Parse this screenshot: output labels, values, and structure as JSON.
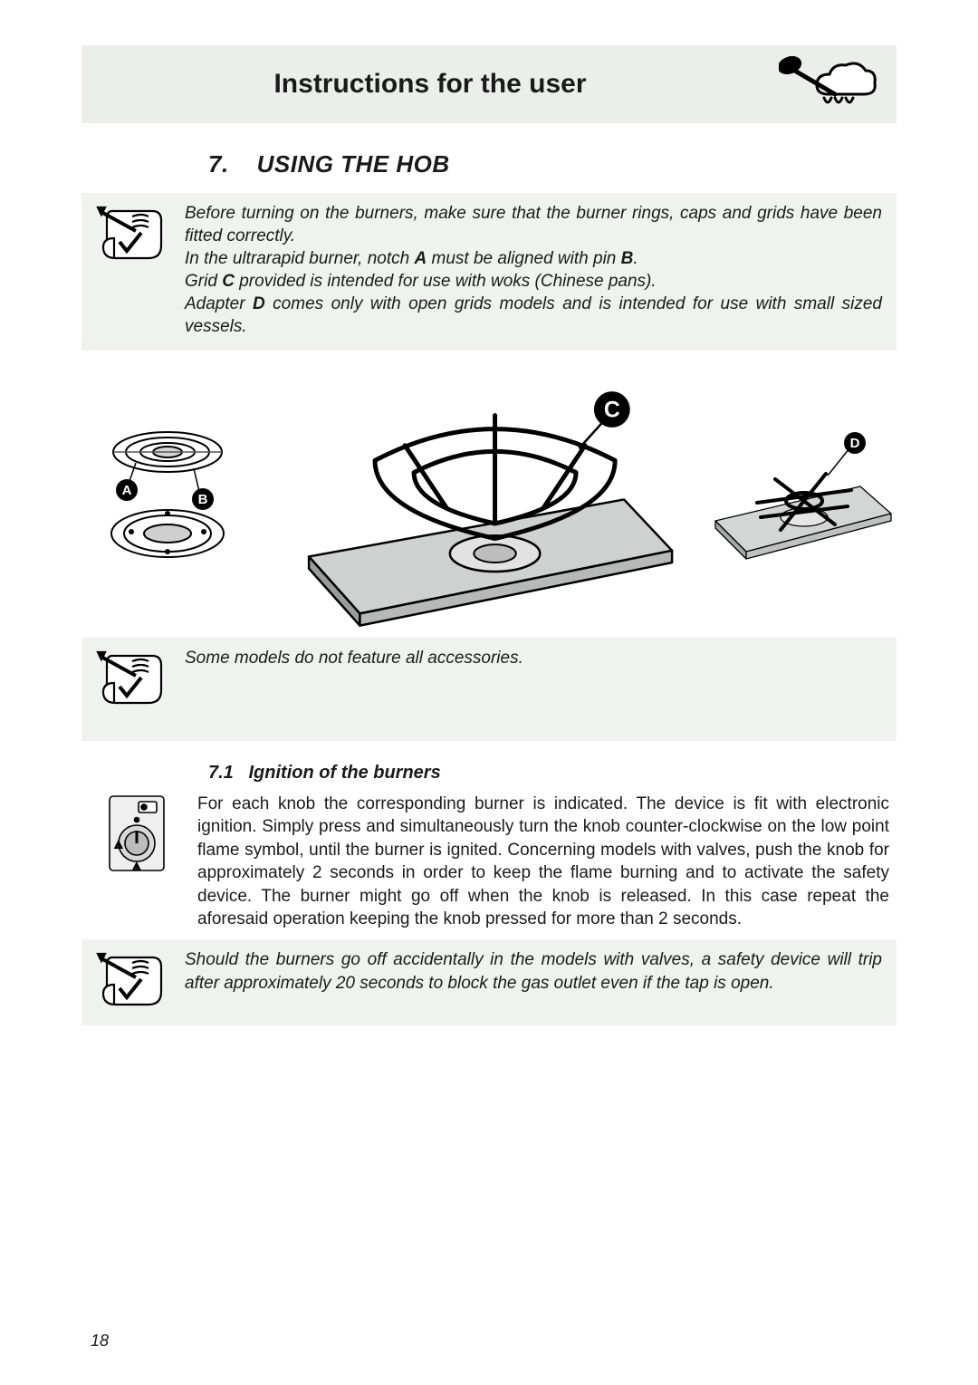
{
  "header": {
    "title": "Instructions for the user",
    "icon_name": "cooking-spoon-icon"
  },
  "section": {
    "number": "7.",
    "title": "USING THE HOB"
  },
  "intro_panel": {
    "icon_name": "note-scroll-icon",
    "paragraphs": [
      {
        "text": "Before turning on the burners, make sure that the burner rings, caps and grids have been fitted correctly."
      },
      {
        "html": "In the ultrarapid burner, notch <strong>A</strong> must be aligned with pin <strong>B</strong>."
      },
      {
        "html": "Grid <strong>C</strong> provided is intended for use with woks (Chinese pans)."
      },
      {
        "html": "Adapter <strong>D</strong> comes only with open grids models and is intended for use with small sized vessels."
      }
    ]
  },
  "diagrams": {
    "labels": {
      "a": "A",
      "b": "B",
      "c": "C",
      "d": "D"
    },
    "label_style": {
      "circle_fill": "#000000",
      "text_fill": "#ffffff",
      "font_size": 15
    }
  },
  "note_panel": {
    "icon_name": "note-scroll-icon",
    "text": "Some models do not feature all accessories."
  },
  "subsection": {
    "number": "7.1",
    "title": "Ignition of the burners"
  },
  "ignition_block": {
    "icon_name": "control-knob-icon",
    "text": "For each knob the corresponding burner is indicated. The device is fit with electronic ignition. Simply press and simultaneously turn the knob counter-clockwise on the low point flame symbol, until the burner is ignited. Concerning models with valves, push the knob for approximately 2 seconds in order to keep the flame burning and to activate the safety device. The burner might go off when the knob is released. In this case repeat the aforesaid operation keeping the knob pressed for more than 2 seconds."
  },
  "safety_panel": {
    "icon_name": "note-scroll-icon",
    "text": "Should the burners go off accidentally in the models with valves, a safety device will trip after approximately 20 seconds to block the gas outlet even if the tap is open."
  },
  "page_number": "18",
  "colors": {
    "page_bg": "#ffffff",
    "band_bg": "#eceeec",
    "panel_bg": "#f0f2f0",
    "text": "#1a1a1a"
  },
  "typography": {
    "font_family": "Arial, Helvetica, sans-serif",
    "header_title_size_pt": 22,
    "section_heading_size_pt": 19,
    "sub_heading_size_pt": 15,
    "body_size_pt": 14
  }
}
